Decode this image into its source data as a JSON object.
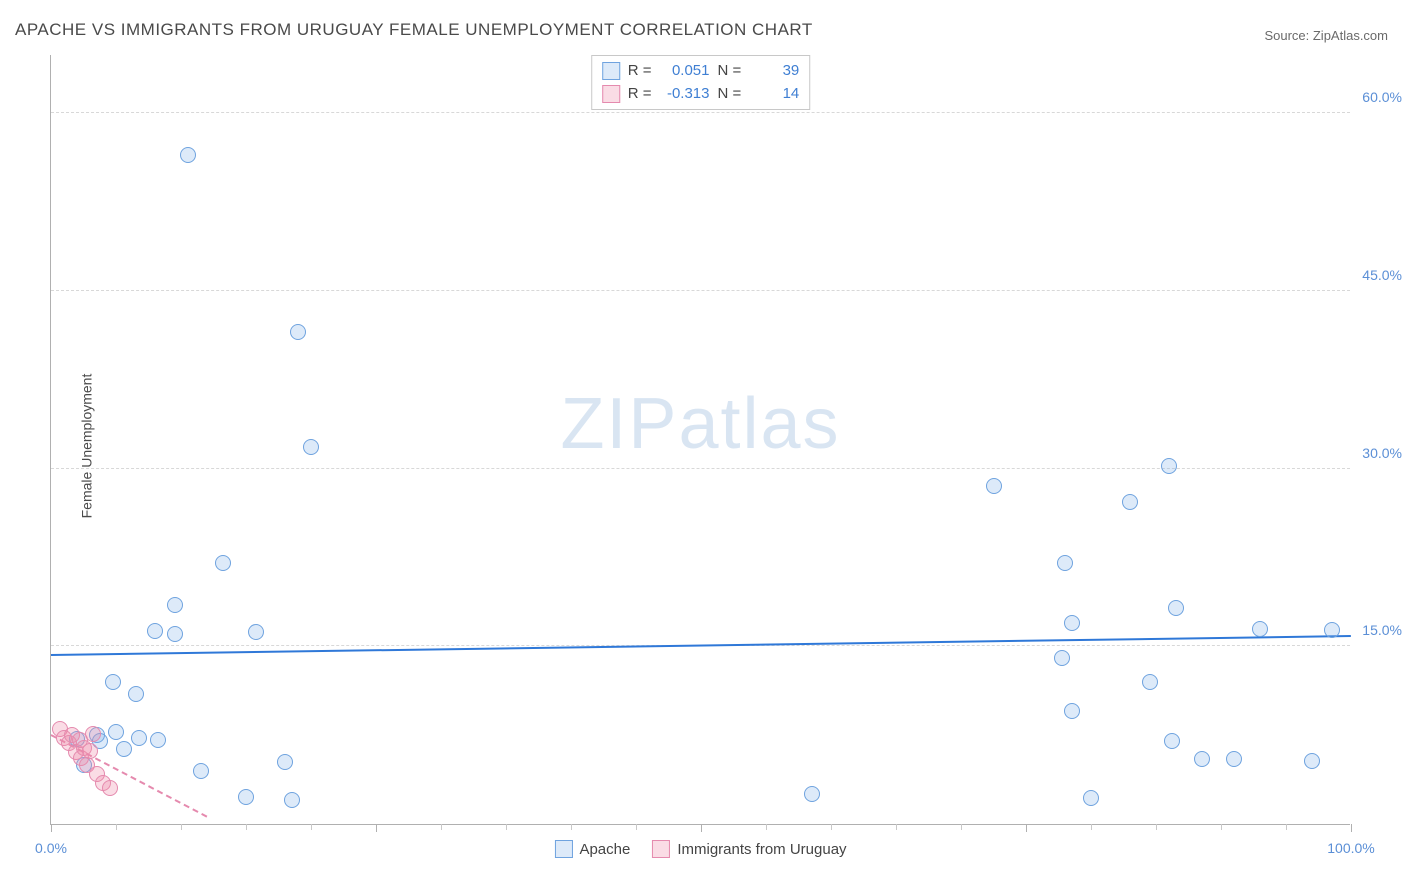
{
  "title": "APACHE VS IMMIGRANTS FROM URUGUAY FEMALE UNEMPLOYMENT CORRELATION CHART",
  "source_label": "Source: ",
  "source_site": "ZipAtlas.com",
  "ylabel": "Female Unemployment",
  "watermark": "ZIPatlas",
  "chart": {
    "type": "scatter",
    "xlim": [
      0,
      100
    ],
    "ylim": [
      0,
      65
    ],
    "x_axis_minor_step": 5,
    "x_axis_major_step": 25,
    "y_ticks": [
      {
        "value": 15,
        "label": "15.0%",
        "color": "#5b8fd6"
      },
      {
        "value": 30,
        "label": "30.0%",
        "color": "#5b8fd6"
      },
      {
        "value": 45,
        "label": "45.0%",
        "color": "#5b8fd6"
      },
      {
        "value": 60,
        "label": "60.0%",
        "color": "#5b8fd6"
      }
    ],
    "x_ticks": [
      {
        "value": 0,
        "label": "0.0%",
        "color": "#5b8fd6"
      },
      {
        "value": 100,
        "label": "100.0%",
        "color": "#5b8fd6"
      }
    ],
    "background_color": "#ffffff",
    "grid_color": "#d8d8d8",
    "marker_radius": 8,
    "marker_border_width": 1.5,
    "series": [
      {
        "name": "Apache",
        "fill": "rgba(120,170,230,0.25)",
        "stroke": "#6fa3df",
        "stat_r": "0.051",
        "stat_n": "39",
        "stat_color": "#3f7fd3",
        "trend": {
          "x1": 0,
          "y1": 14.2,
          "x2": 100,
          "y2": 15.8,
          "style": "solid",
          "color": "#2f78d8"
        },
        "points": [
          {
            "x": 10.5,
            "y": 56.5
          },
          {
            "x": 19.0,
            "y": 41.5
          },
          {
            "x": 20.0,
            "y": 31.8
          },
          {
            "x": 13.2,
            "y": 22.0
          },
          {
            "x": 9.5,
            "y": 18.5
          },
          {
            "x": 8.0,
            "y": 16.3
          },
          {
            "x": 9.5,
            "y": 16.0
          },
          {
            "x": 15.8,
            "y": 16.2
          },
          {
            "x": 4.8,
            "y": 12.0
          },
          {
            "x": 6.5,
            "y": 11.0
          },
          {
            "x": 2.0,
            "y": 7.2
          },
          {
            "x": 3.5,
            "y": 7.5
          },
          {
            "x": 5.0,
            "y": 7.8
          },
          {
            "x": 6.8,
            "y": 7.3
          },
          {
            "x": 8.2,
            "y": 7.1
          },
          {
            "x": 11.5,
            "y": 4.5
          },
          {
            "x": 18.0,
            "y": 5.2
          },
          {
            "x": 15.0,
            "y": 2.3
          },
          {
            "x": 18.5,
            "y": 2.0
          },
          {
            "x": 2.5,
            "y": 5.0
          },
          {
            "x": 72.5,
            "y": 28.5
          },
          {
            "x": 78.0,
            "y": 22.0
          },
          {
            "x": 78.5,
            "y": 17.0
          },
          {
            "x": 77.8,
            "y": 14.0
          },
          {
            "x": 78.5,
            "y": 9.5
          },
          {
            "x": 80.0,
            "y": 2.2
          },
          {
            "x": 83.0,
            "y": 27.2
          },
          {
            "x": 84.5,
            "y": 12.0
          },
          {
            "x": 86.5,
            "y": 18.2
          },
          {
            "x": 86.2,
            "y": 7.0
          },
          {
            "x": 88.5,
            "y": 5.5
          },
          {
            "x": 86.0,
            "y": 30.2
          },
          {
            "x": 91.0,
            "y": 5.5
          },
          {
            "x": 93.0,
            "y": 16.5
          },
          {
            "x": 97.0,
            "y": 5.3
          },
          {
            "x": 98.5,
            "y": 16.4
          },
          {
            "x": 58.5,
            "y": 2.5
          },
          {
            "x": 3.8,
            "y": 7.0
          },
          {
            "x": 5.6,
            "y": 6.3
          }
        ]
      },
      {
        "name": "Immigrants from Uruguay",
        "fill": "rgba(240,140,170,0.30)",
        "stroke": "#e58aae",
        "stat_r": "-0.313",
        "stat_n": "14",
        "stat_color": "#3f7fd3",
        "trend": {
          "x1": 0,
          "y1": 7.4,
          "x2": 12,
          "y2": 0.5,
          "style": "dashed",
          "color": "#e58aae"
        },
        "points": [
          {
            "x": 0.7,
            "y": 8.0
          },
          {
            "x": 1.0,
            "y": 7.3
          },
          {
            "x": 1.4,
            "y": 6.8
          },
          {
            "x": 1.6,
            "y": 7.5
          },
          {
            "x": 1.9,
            "y": 6.1
          },
          {
            "x": 2.2,
            "y": 7.1
          },
          {
            "x": 2.3,
            "y": 5.6
          },
          {
            "x": 2.5,
            "y": 6.4
          },
          {
            "x": 2.8,
            "y": 5.0
          },
          {
            "x": 3.0,
            "y": 6.2
          },
          {
            "x": 3.5,
            "y": 4.2
          },
          {
            "x": 4.0,
            "y": 3.5
          },
          {
            "x": 4.5,
            "y": 3.0
          },
          {
            "x": 3.2,
            "y": 7.6
          }
        ]
      }
    ],
    "statbox": {
      "r_label": "R =",
      "n_label": "N ="
    },
    "legend_label_apache": "Apache",
    "legend_label_uruguay": "Immigrants from Uruguay"
  }
}
